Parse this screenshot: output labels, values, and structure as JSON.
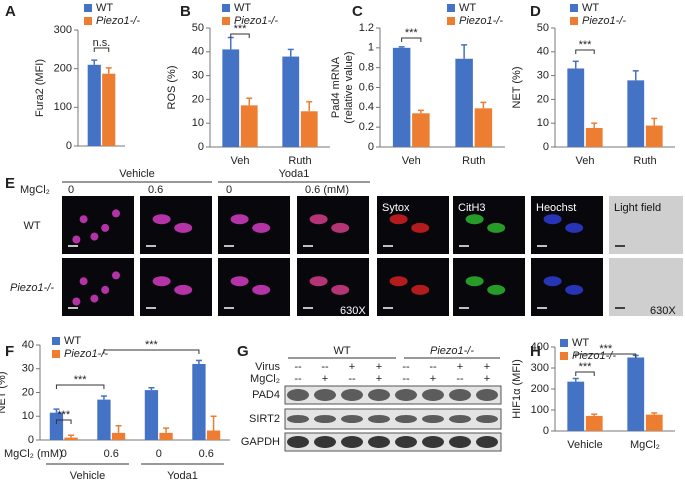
{
  "chart_data": [
    {
      "panel": "A",
      "type": "bar",
      "ylabel": [
        "Fura2 (MFI)"
      ],
      "categories": [
        null
      ],
      "series": [
        {
          "name": "WT",
          "color": "#4472c4",
          "values": [
            210
          ],
          "errors": [
            12
          ]
        },
        {
          "name": "Piezo1-/-",
          "color": "#ed7d31",
          "values": [
            187
          ],
          "errors": [
            15
          ]
        }
      ],
      "ylim": [
        0,
        300
      ],
      "yticks": [
        0,
        100,
        200,
        300
      ],
      "annotations": [
        "n.s."
      ]
    },
    {
      "panel": "B",
      "type": "bar",
      "ylabel": [
        "ROS (%)"
      ],
      "categories": [
        "Veh",
        "Ruth"
      ],
      "series": [
        {
          "name": "WT",
          "color": "#4472c4",
          "values": [
            41,
            38
          ],
          "errors": [
            5,
            3
          ]
        },
        {
          "name": "Piezo1-/-",
          "color": "#ed7d31",
          "values": [
            17.5,
            15
          ],
          "errors": [
            3,
            4
          ]
        }
      ],
      "ylim": [
        0,
        50
      ],
      "yticks": [
        0,
        10,
        20,
        30,
        40,
        50
      ],
      "annotations": [
        "***"
      ]
    },
    {
      "panel": "C",
      "type": "bar",
      "ylabel": [
        "Pad4 mRNA",
        "(relative value)"
      ],
      "categories": [
        "Veh",
        "Ruth"
      ],
      "series": [
        {
          "name": "WT",
          "color": "#4472c4",
          "values": [
            1.0,
            0.89
          ],
          "errors": [
            0.01,
            0.14
          ]
        },
        {
          "name": "Piezo1-/-",
          "color": "#ed7d31",
          "values": [
            0.34,
            0.39
          ],
          "errors": [
            0.03,
            0.06
          ]
        }
      ],
      "ylim": [
        0,
        1.2
      ],
      "yticks": [
        0,
        0.2,
        0.4,
        0.6,
        0.8,
        1,
        1.2
      ],
      "annotations": [
        "***"
      ]
    },
    {
      "panel": "D",
      "type": "bar",
      "ylabel": [
        "NET (%)"
      ],
      "categories": [
        "Veh",
        "Ruth"
      ],
      "series": [
        {
          "name": "WT",
          "color": "#4472c4",
          "values": [
            33,
            28
          ],
          "errors": [
            3,
            4
          ]
        },
        {
          "name": "Piezo1-/-",
          "color": "#ed7d31",
          "values": [
            8,
            9
          ],
          "errors": [
            2,
            3
          ]
        }
      ],
      "ylim": [
        0,
        50
      ],
      "yticks": [
        0,
        10,
        20,
        30,
        40,
        50
      ],
      "annotations": [
        "***"
      ]
    },
    {
      "panel": "F",
      "type": "bar",
      "ylabel": [
        "NET (%)"
      ],
      "xlabel": "MgCl₂ (mM)",
      "categories": [
        "0",
        "0.6",
        "0",
        "0.6"
      ],
      "groups": [
        "Vehicle",
        "Yoda1"
      ],
      "series": [
        {
          "name": "WT",
          "color": "#4472c4",
          "values": [
            11.5,
            17,
            21,
            32
          ],
          "errors": [
            1.5,
            1.5,
            1,
            1.5
          ]
        },
        {
          "name": "Piezo1-/-",
          "color": "#ed7d31",
          "values": [
            1,
            3,
            3,
            4
          ],
          "errors": [
            1,
            3,
            2,
            6
          ]
        }
      ],
      "ylim": [
        0,
        40
      ],
      "yticks": [
        0,
        10,
        20,
        30,
        40
      ],
      "annotations": [
        "***",
        "***",
        "***"
      ]
    },
    {
      "panel": "H",
      "type": "bar",
      "ylabel": [
        "HIF1α (MFI)"
      ],
      "categories": [
        "Vehicle",
        "MgCl₂"
      ],
      "series": [
        {
          "name": "WT",
          "color": "#4472c4",
          "values": [
            235,
            350
          ],
          "errors": [
            15,
            10
          ]
        },
        {
          "name": "Piezo1-/-",
          "color": "#ed7d31",
          "values": [
            72,
            78
          ],
          "errors": [
            8,
            8
          ]
        }
      ],
      "ylim": [
        0,
        400
      ],
      "yticks": [
        0,
        100,
        200,
        300,
        400
      ],
      "annotations": [
        "***",
        "***"
      ]
    }
  ],
  "panel_e": {
    "panel": "E",
    "treatment": "MgCl₂",
    "groups": [
      "Vehicle",
      "Yoda1"
    ],
    "doses": [
      "0",
      "0.6",
      "0",
      "0.6 (mM)"
    ],
    "stains": [
      "Sytox",
      "CitH3",
      "Heochst",
      "Light field"
    ],
    "rows": [
      "WT",
      "Piezo1-/-"
    ],
    "magnification": "630X"
  },
  "panel_g": {
    "panel": "G",
    "groups": [
      "WT",
      "Piezo1-/-"
    ],
    "rows": [
      {
        "label": "Virus",
        "signs": [
          "--",
          "--",
          "+",
          "+",
          "--",
          "--",
          "+",
          "+"
        ]
      },
      {
        "label": "MgCl₂",
        "signs": [
          "--",
          "+",
          "--",
          "+",
          "--",
          "+",
          "--",
          "+"
        ]
      }
    ],
    "bands": [
      "PAD4",
      "SIRT2",
      "GAPDH"
    ]
  }
}
